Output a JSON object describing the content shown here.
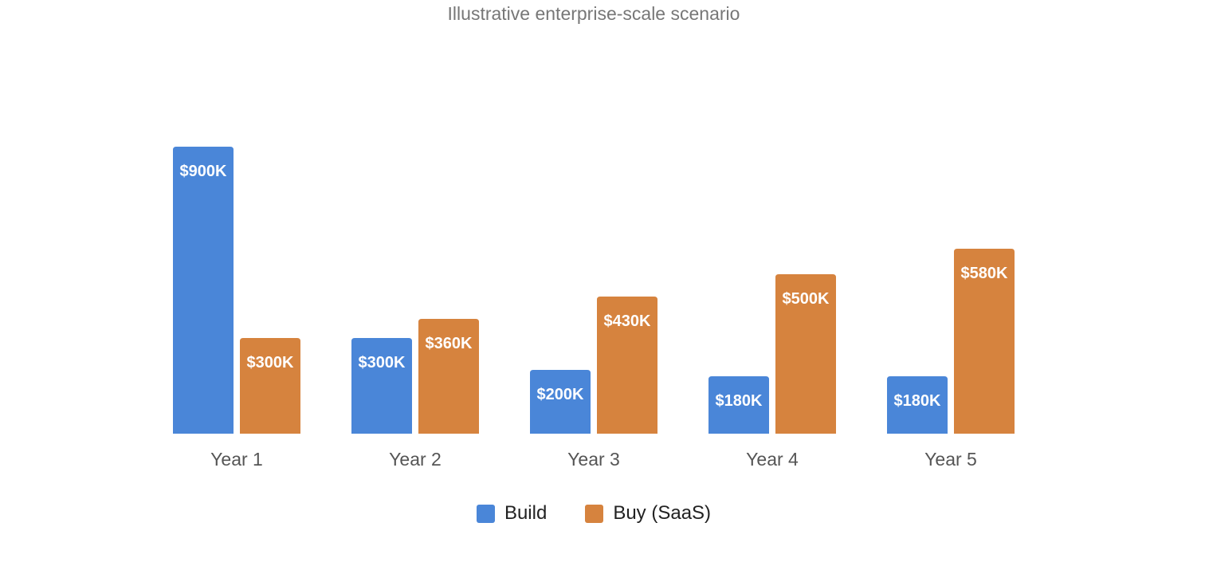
{
  "chart_data": {
    "type": "bar",
    "title": "Illustrative enterprise-scale scenario",
    "categories": [
      "Year 1",
      "Year 2",
      "Year 3",
      "Year 4",
      "Year 5"
    ],
    "series": [
      {
        "name": "Build",
        "color": "#4a86d8",
        "values": [
          900,
          300,
          200,
          180,
          180
        ],
        "labels": [
          "$900K",
          "$300K",
          "$200K",
          "$180K",
          "$180K"
        ]
      },
      {
        "name": "Buy (SaaS)",
        "color": "#d6833e",
        "values": [
          300,
          360,
          430,
          500,
          580
        ],
        "labels": [
          "$300K",
          "$360K",
          "$430K",
          "$500K",
          "$580K"
        ]
      }
    ],
    "xlabel": "",
    "ylabel": "",
    "ylim": [
      0,
      900
    ],
    "grid": false,
    "legend": "bottom"
  }
}
